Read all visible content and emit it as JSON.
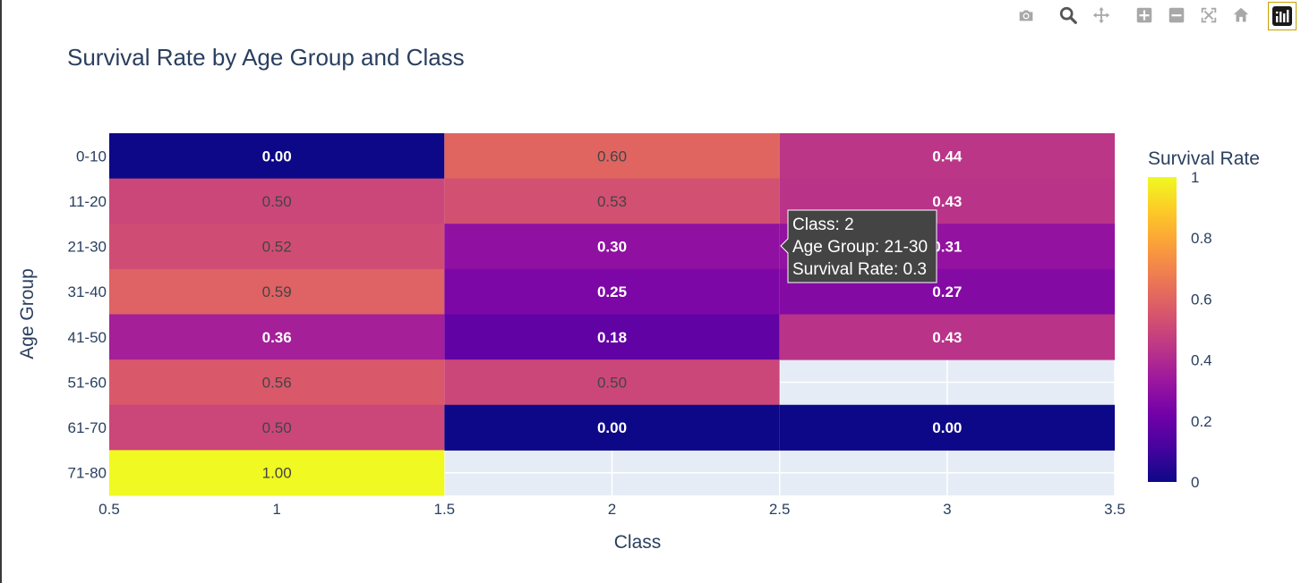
{
  "toolbar": {
    "buttons": [
      "camera-icon",
      "zoom-icon",
      "pan-icon",
      "zoom-in-icon",
      "zoom-out-icon",
      "autoscale-icon",
      "home-icon",
      "plotly-logo-icon"
    ]
  },
  "chart_data": {
    "type": "heatmap",
    "title": "Survival Rate by Age Group and Class",
    "xlabel": "Class",
    "ylabel": "Age Group",
    "x_categories": [
      1,
      2,
      3
    ],
    "x_ticks": [
      "0.5",
      "1",
      "1.5",
      "2",
      "2.5",
      "3",
      "3.5"
    ],
    "xlim": [
      0.5,
      3.5
    ],
    "y_categories": [
      "0-10",
      "11-20",
      "21-30",
      "31-40",
      "41-50",
      "51-60",
      "61-70",
      "71-80"
    ],
    "z": [
      [
        0.0,
        0.6,
        0.44
      ],
      [
        0.5,
        0.53,
        0.43
      ],
      [
        0.52,
        0.3,
        0.31
      ],
      [
        0.59,
        0.25,
        0.27
      ],
      [
        0.36,
        0.18,
        0.43
      ],
      [
        0.56,
        0.5,
        null
      ],
      [
        0.5,
        0.0,
        0.0
      ],
      [
        1.0,
        null,
        null
      ]
    ],
    "text": [
      [
        "0.00",
        "0.60",
        "0.44"
      ],
      [
        "0.50",
        "0.53",
        "0.43"
      ],
      [
        "0.52",
        "0.30",
        "0.31"
      ],
      [
        "0.59",
        "0.25",
        "0.27"
      ],
      [
        "0.36",
        "0.18",
        "0.43"
      ],
      [
        "0.56",
        "0.50",
        ""
      ],
      [
        "0.50",
        "0.00",
        "0.00"
      ],
      [
        "1.00",
        "",
        ""
      ]
    ],
    "colorbar": {
      "title": "Survival Rate",
      "range": [
        0,
        1
      ],
      "ticks": [
        "0",
        "0.2",
        "0.4",
        "0.6",
        "0.8",
        "1"
      ],
      "colorscale": [
        "#0d0887",
        "#46039f",
        "#7201a8",
        "#9c179e",
        "#bd3786",
        "#d8576b",
        "#ed7953",
        "#fb9f3a",
        "#fdca26",
        "#f0f921"
      ]
    },
    "tooltip": {
      "lines": [
        "Class: 2",
        "Age Group: 21-30",
        "Survival Rate: 0.3"
      ]
    },
    "colors": {
      "plot_bg": "#e5ecf6",
      "text_dark": "#2a3f5f",
      "tooltip_bg": "#444444"
    }
  }
}
